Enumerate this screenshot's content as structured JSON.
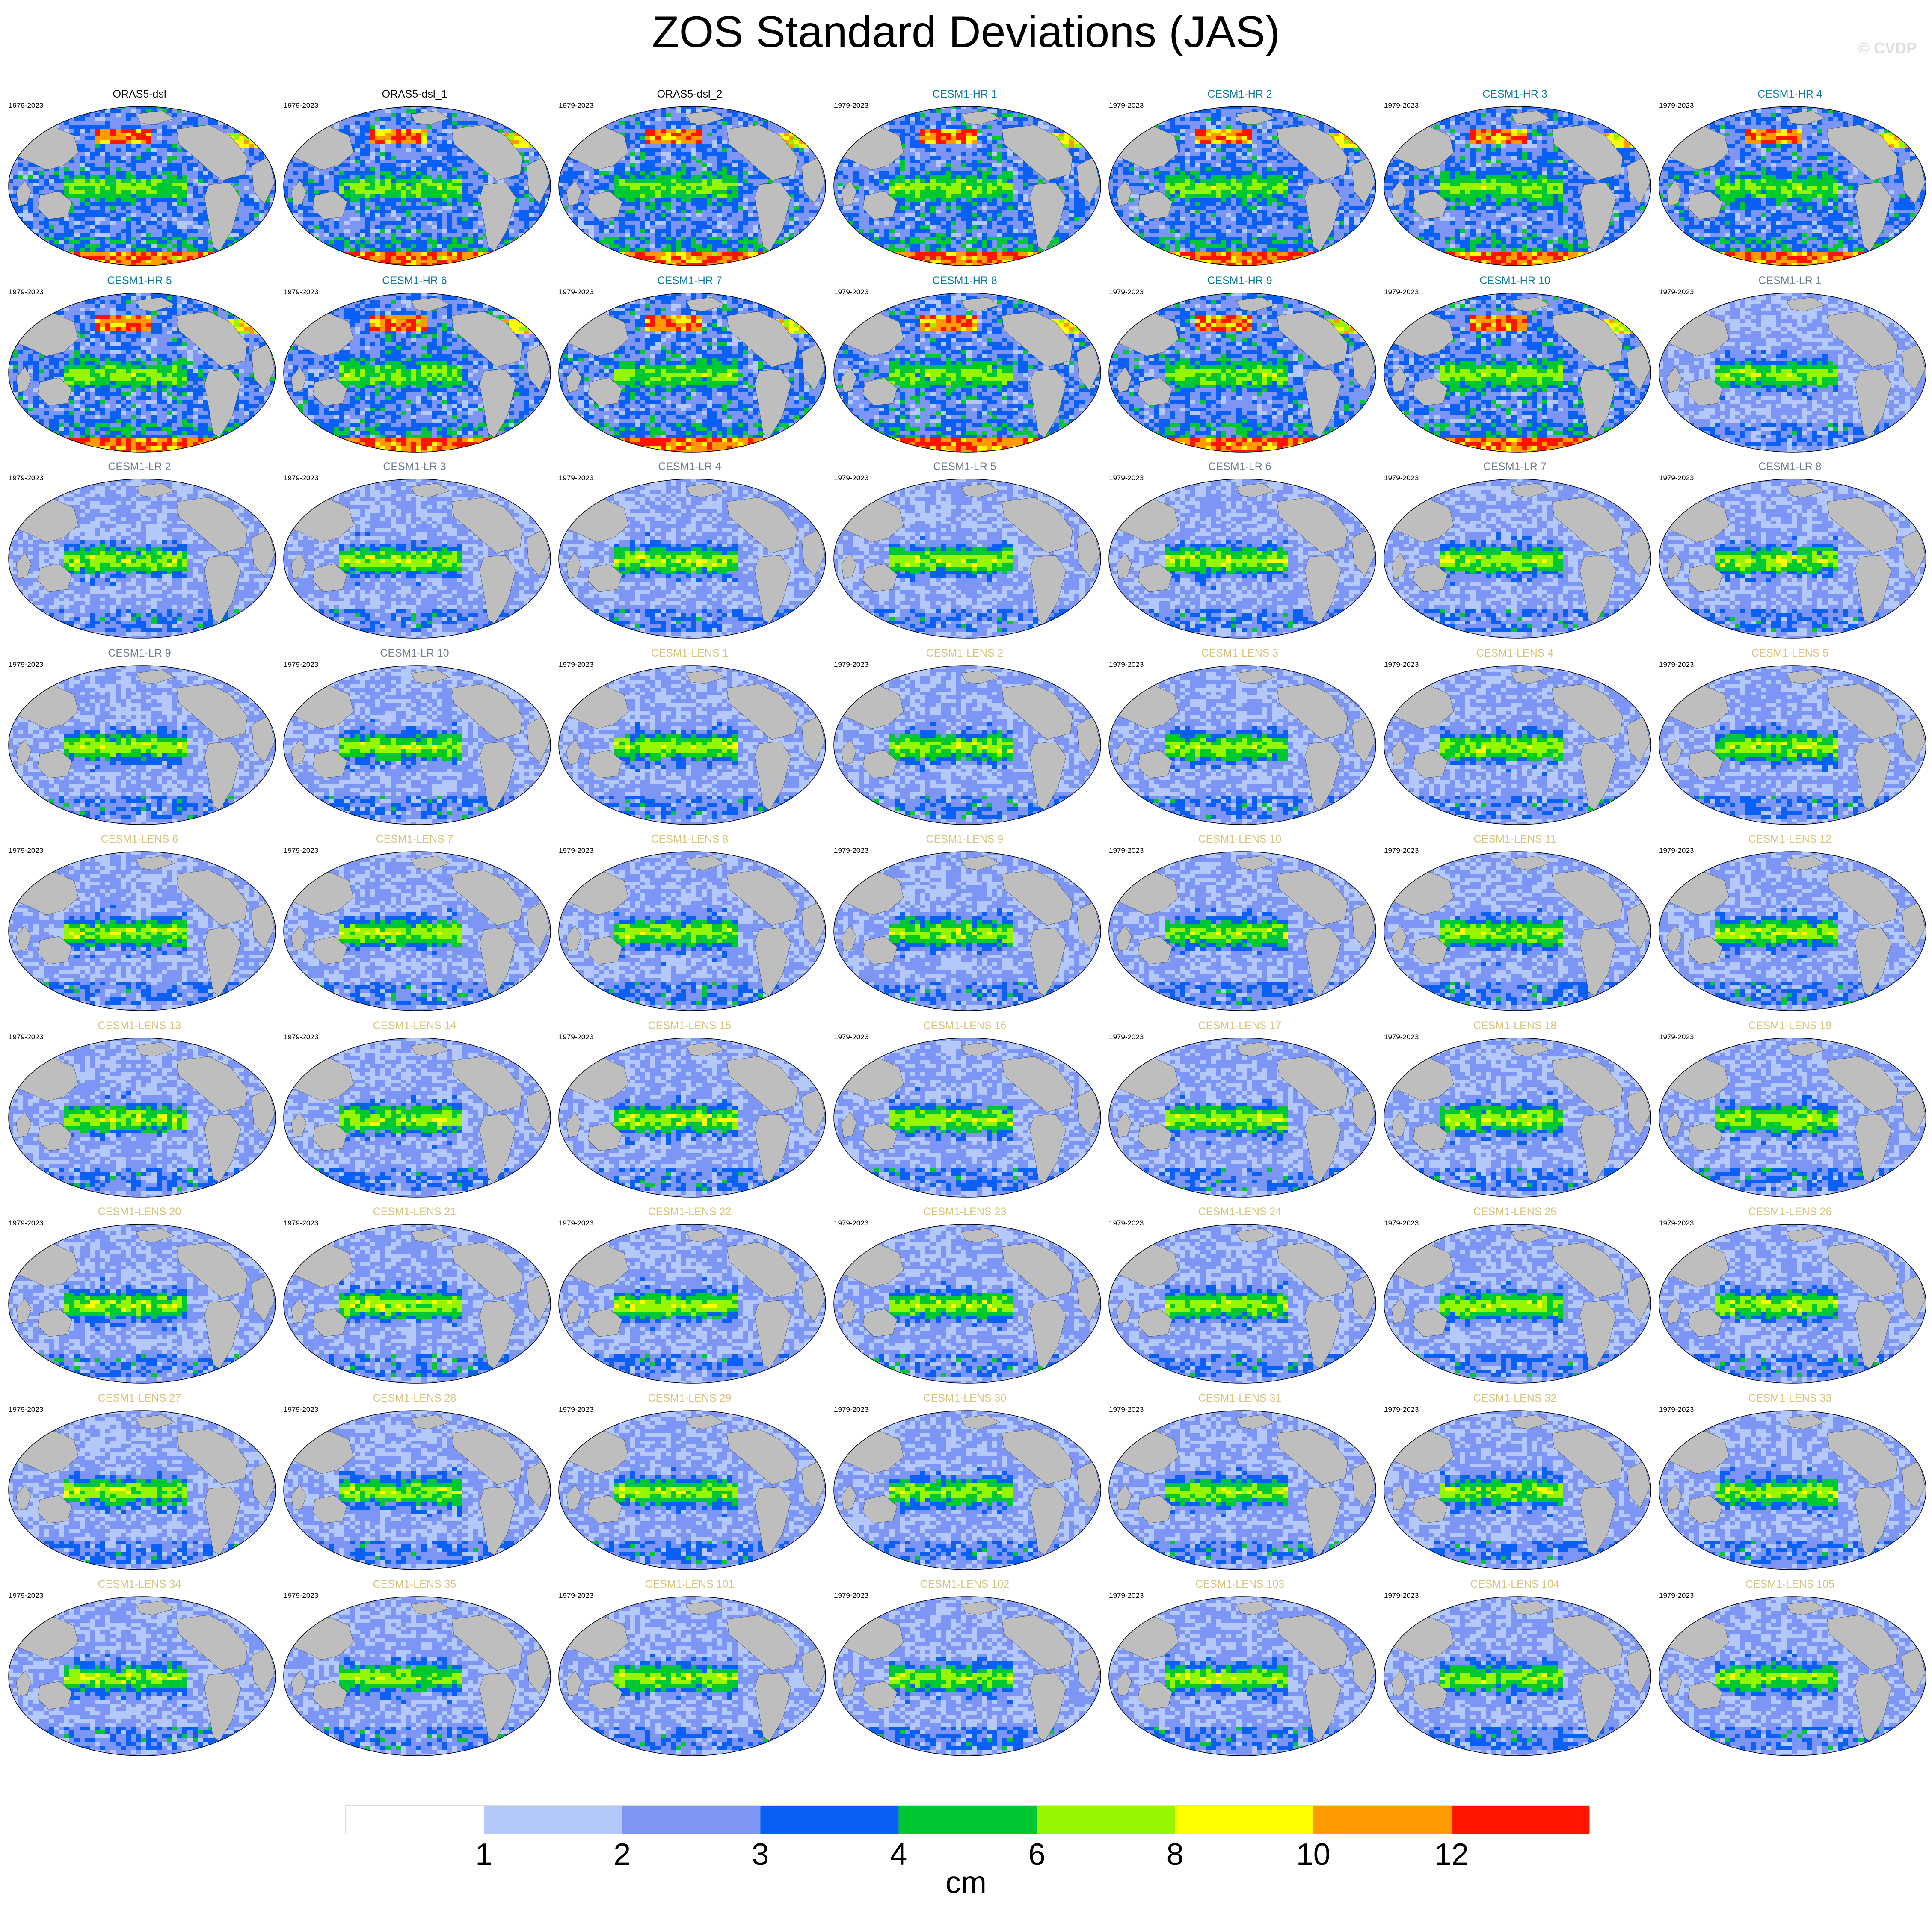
{
  "title": "ZOS Standard Deviations (JAS)",
  "copyright": "© CVDP",
  "colors": {
    "ORAS5": "#000000",
    "CESM1-HR": "#0a7a9a",
    "CESM1-LR": "#6b7d8c",
    "CESM1-LENS": "#d7c27a",
    "land": "#bebebe"
  },
  "chart_data": {
    "type": "heatmap",
    "map_projection": "robinson",
    "variable": "ZOS standard deviation",
    "season": "JAS",
    "colorbar": {
      "unit": "cm",
      "tick_labels": [
        "1",
        "2",
        "3",
        "4",
        "6",
        "8",
        "10",
        "12"
      ],
      "bins": [
        {
          "range": "<1",
          "color": "#ffffff"
        },
        {
          "range": "1-2",
          "color": "#b4c8fa"
        },
        {
          "range": "2-3",
          "color": "#7d96f5"
        },
        {
          "range": "3-4",
          "color": "#0a5ff5"
        },
        {
          "range": "4-6",
          "color": "#00c832"
        },
        {
          "range": "6-8",
          "color": "#96f500"
        },
        {
          "range": "8-10",
          "color": "#ffff00"
        },
        {
          "range": "10-12",
          "color": "#ff9b00"
        },
        {
          "range": ">12",
          "color": "#ff1400"
        }
      ]
    },
    "panels": [
      {
        "name": "ORAS5-dsl",
        "period": "1979-2023",
        "group": "ORAS5"
      },
      {
        "name": "ORAS5-dsl_1",
        "period": "1979-2023",
        "group": "ORAS5"
      },
      {
        "name": "ORAS5-dsl_2",
        "period": "1979-2023",
        "group": "ORAS5"
      },
      {
        "name": "CESM1-HR 1",
        "period": "1979-2023",
        "group": "CESM1-HR"
      },
      {
        "name": "CESM1-HR 2",
        "period": "1979-2023",
        "group": "CESM1-HR"
      },
      {
        "name": "CESM1-HR 3",
        "period": "1979-2023",
        "group": "CESM1-HR"
      },
      {
        "name": "CESM1-HR 4",
        "period": "1979-2023",
        "group": "CESM1-HR"
      },
      {
        "name": "CESM1-HR 5",
        "period": "1979-2023",
        "group": "CESM1-HR"
      },
      {
        "name": "CESM1-HR 6",
        "period": "1979-2023",
        "group": "CESM1-HR"
      },
      {
        "name": "CESM1-HR 7",
        "period": "1979-2023",
        "group": "CESM1-HR"
      },
      {
        "name": "CESM1-HR 8",
        "period": "1979-2023",
        "group": "CESM1-HR"
      },
      {
        "name": "CESM1-HR 9",
        "period": "1979-2023",
        "group": "CESM1-HR"
      },
      {
        "name": "CESM1-HR 10",
        "period": "1979-2023",
        "group": "CESM1-HR"
      },
      {
        "name": "CESM1-LR 1",
        "period": "1979-2023",
        "group": "CESM1-LR"
      },
      {
        "name": "CESM1-LR 2",
        "period": "1979-2023",
        "group": "CESM1-LR"
      },
      {
        "name": "CESM1-LR 3",
        "period": "1979-2023",
        "group": "CESM1-LR"
      },
      {
        "name": "CESM1-LR 4",
        "period": "1979-2023",
        "group": "CESM1-LR"
      },
      {
        "name": "CESM1-LR 5",
        "period": "1979-2023",
        "group": "CESM1-LR"
      },
      {
        "name": "CESM1-LR 6",
        "period": "1979-2023",
        "group": "CESM1-LR"
      },
      {
        "name": "CESM1-LR 7",
        "period": "1979-2023",
        "group": "CESM1-LR"
      },
      {
        "name": "CESM1-LR 8",
        "period": "1979-2023",
        "group": "CESM1-LR"
      },
      {
        "name": "CESM1-LR 9",
        "period": "1979-2023",
        "group": "CESM1-LR"
      },
      {
        "name": "CESM1-LR 10",
        "period": "1979-2023",
        "group": "CESM1-LR"
      },
      {
        "name": "CESM1-LENS 1",
        "period": "1979-2023",
        "group": "CESM1-LENS"
      },
      {
        "name": "CESM1-LENS 2",
        "period": "1979-2023",
        "group": "CESM1-LENS"
      },
      {
        "name": "CESM1-LENS 3",
        "period": "1979-2023",
        "group": "CESM1-LENS"
      },
      {
        "name": "CESM1-LENS 4",
        "period": "1979-2023",
        "group": "CESM1-LENS"
      },
      {
        "name": "CESM1-LENS 5",
        "period": "1979-2023",
        "group": "CESM1-LENS"
      },
      {
        "name": "CESM1-LENS 6",
        "period": "1979-2023",
        "group": "CESM1-LENS"
      },
      {
        "name": "CESM1-LENS 7",
        "period": "1979-2023",
        "group": "CESM1-LENS"
      },
      {
        "name": "CESM1-LENS 8",
        "period": "1979-2023",
        "group": "CESM1-LENS"
      },
      {
        "name": "CESM1-LENS 9",
        "period": "1979-2023",
        "group": "CESM1-LENS"
      },
      {
        "name": "CESM1-LENS 10",
        "period": "1979-2023",
        "group": "CESM1-LENS"
      },
      {
        "name": "CESM1-LENS 11",
        "period": "1979-2023",
        "group": "CESM1-LENS"
      },
      {
        "name": "CESM1-LENS 12",
        "period": "1979-2023",
        "group": "CESM1-LENS"
      },
      {
        "name": "CESM1-LENS 13",
        "period": "1979-2023",
        "group": "CESM1-LENS"
      },
      {
        "name": "CESM1-LENS 14",
        "period": "1979-2023",
        "group": "CESM1-LENS"
      },
      {
        "name": "CESM1-LENS 15",
        "period": "1979-2023",
        "group": "CESM1-LENS"
      },
      {
        "name": "CESM1-LENS 16",
        "period": "1979-2023",
        "group": "CESM1-LENS"
      },
      {
        "name": "CESM1-LENS 17",
        "period": "1979-2023",
        "group": "CESM1-LENS"
      },
      {
        "name": "CESM1-LENS 18",
        "period": "1979-2023",
        "group": "CESM1-LENS"
      },
      {
        "name": "CESM1-LENS 19",
        "period": "1979-2023",
        "group": "CESM1-LENS"
      },
      {
        "name": "CESM1-LENS 20",
        "period": "1979-2023",
        "group": "CESM1-LENS"
      },
      {
        "name": "CESM1-LENS 21",
        "period": "1979-2023",
        "group": "CESM1-LENS"
      },
      {
        "name": "CESM1-LENS 22",
        "period": "1979-2023",
        "group": "CESM1-LENS"
      },
      {
        "name": "CESM1-LENS 23",
        "period": "1979-2023",
        "group": "CESM1-LENS"
      },
      {
        "name": "CESM1-LENS 24",
        "period": "1979-2023",
        "group": "CESM1-LENS"
      },
      {
        "name": "CESM1-LENS 25",
        "period": "1979-2023",
        "group": "CESM1-LENS"
      },
      {
        "name": "CESM1-LENS 26",
        "period": "1979-2023",
        "group": "CESM1-LENS"
      },
      {
        "name": "CESM1-LENS 27",
        "period": "1979-2023",
        "group": "CESM1-LENS"
      },
      {
        "name": "CESM1-LENS 28",
        "period": "1979-2023",
        "group": "CESM1-LENS"
      },
      {
        "name": "CESM1-LENS 29",
        "period": "1979-2023",
        "group": "CESM1-LENS"
      },
      {
        "name": "CESM1-LENS 30",
        "period": "1979-2023",
        "group": "CESM1-LENS"
      },
      {
        "name": "CESM1-LENS 31",
        "period": "1979-2023",
        "group": "CESM1-LENS"
      },
      {
        "name": "CESM1-LENS 32",
        "period": "1979-2023",
        "group": "CESM1-LENS"
      },
      {
        "name": "CESM1-LENS 33",
        "period": "1979-2023",
        "group": "CESM1-LENS"
      },
      {
        "name": "CESM1-LENS 34",
        "period": "1979-2023",
        "group": "CESM1-LENS"
      },
      {
        "name": "CESM1-LENS 35",
        "period": "1979-2023",
        "group": "CESM1-LENS"
      },
      {
        "name": "CESM1-LENS 101",
        "period": "1979-2023",
        "group": "CESM1-LENS"
      },
      {
        "name": "CESM1-LENS 102",
        "period": "1979-2023",
        "group": "CESM1-LENS"
      },
      {
        "name": "CESM1-LENS 103",
        "period": "1979-2023",
        "group": "CESM1-LENS"
      },
      {
        "name": "CESM1-LENS 104",
        "period": "1979-2023",
        "group": "CESM1-LENS"
      },
      {
        "name": "CESM1-LENS 105",
        "period": "1979-2023",
        "group": "CESM1-LENS"
      }
    ]
  }
}
